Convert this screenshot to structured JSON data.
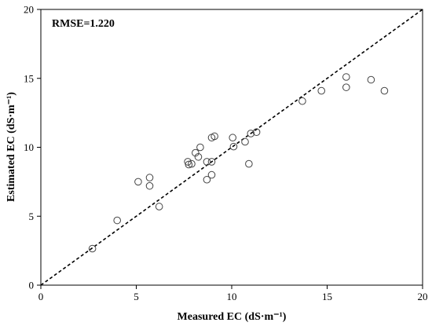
{
  "chart_data": {
    "type": "scatter",
    "xlabel": "Measured EC (dS·m⁻¹)",
    "ylabel": "Estimated EC (dS·m⁻¹)",
    "xlim": [
      0,
      20
    ],
    "ylim": [
      0,
      20
    ],
    "xticks": [
      "0",
      "5",
      "10",
      "15",
      "20"
    ],
    "yticks": [
      "0",
      "5",
      "10",
      "15",
      "20"
    ],
    "annotation": "RMSE=1.220",
    "grid": false,
    "reference_line": "1:1 dashed",
    "marker": "open circle",
    "points": [
      {
        "x": 2.7,
        "y": 2.65
      },
      {
        "x": 4.0,
        "y": 4.7
      },
      {
        "x": 5.1,
        "y": 7.5
      },
      {
        "x": 5.7,
        "y": 7.8
      },
      {
        "x": 5.7,
        "y": 7.2
      },
      {
        "x": 6.2,
        "y": 5.7
      },
      {
        "x": 7.7,
        "y": 8.95
      },
      {
        "x": 7.75,
        "y": 8.75
      },
      {
        "x": 7.9,
        "y": 8.8
      },
      {
        "x": 8.1,
        "y": 9.6
      },
      {
        "x": 8.25,
        "y": 9.3
      },
      {
        "x": 8.35,
        "y": 10.0
      },
      {
        "x": 8.7,
        "y": 7.65
      },
      {
        "x": 8.7,
        "y": 8.95
      },
      {
        "x": 8.95,
        "y": 8.95
      },
      {
        "x": 8.95,
        "y": 8.0
      },
      {
        "x": 8.95,
        "y": 10.7
      },
      {
        "x": 9.1,
        "y": 10.8
      },
      {
        "x": 10.05,
        "y": 10.7
      },
      {
        "x": 10.1,
        "y": 10.05
      },
      {
        "x": 10.7,
        "y": 10.4
      },
      {
        "x": 10.9,
        "y": 8.8
      },
      {
        "x": 11.0,
        "y": 11.0
      },
      {
        "x": 11.3,
        "y": 11.1
      },
      {
        "x": 13.7,
        "y": 13.35
      },
      {
        "x": 14.7,
        "y": 14.1
      },
      {
        "x": 16.0,
        "y": 15.1
      },
      {
        "x": 16.0,
        "y": 14.35
      },
      {
        "x": 17.3,
        "y": 14.9
      },
      {
        "x": 18.0,
        "y": 14.1
      }
    ]
  }
}
